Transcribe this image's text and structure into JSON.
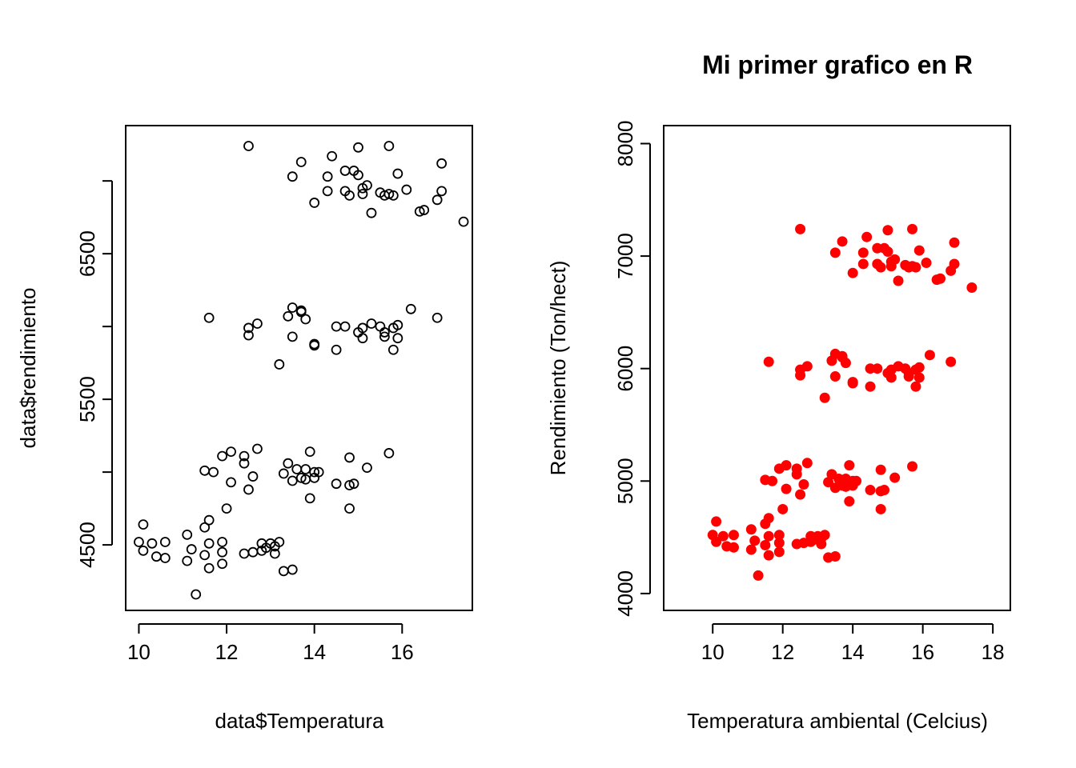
{
  "chart_data": [
    {
      "type": "scatter",
      "title": "",
      "xlabel": "data$Temperatura",
      "ylabel": "data$rendimiento",
      "xlim": [
        9.7,
        17.6
      ],
      "ylim": [
        4050,
        7380
      ],
      "xticks": [
        "10",
        "12",
        "14",
        "16"
      ],
      "yticks": [
        "4500",
        "5500",
        "6500"
      ],
      "marker": "open-circle",
      "color": "#000000",
      "x": [
        12.5,
        15.7,
        15.0,
        14.4,
        13.7,
        16.9,
        14.7,
        14.9,
        15.0,
        15.9,
        13.5,
        14.3,
        14.3,
        14.7,
        15.1,
        14.8,
        15.2,
        15.5,
        15.7,
        16.1,
        16.4,
        16.9,
        14.0,
        15.1,
        15.6,
        15.8,
        15.3,
        16.8,
        16.5,
        17.4,
        13.5,
        13.7,
        13.7,
        13.4,
        13.8,
        16.2,
        11.6,
        12.5,
        12.5,
        12.7,
        14.5,
        14.7,
        15.3,
        15.1,
        15.5,
        15.6,
        15.9,
        15.8,
        16.8,
        15.0,
        15.1,
        15.6,
        15.9,
        13.5,
        14.0,
        14.0,
        14.5,
        15.8,
        13.2,
        12.7,
        12.1,
        11.9,
        12.4,
        12.4,
        11.5,
        11.7,
        12.1,
        12.6,
        12.5,
        13.4,
        13.6,
        13.8,
        14.0,
        14.1,
        13.9,
        14.8,
        15.2,
        15.7,
        13.3,
        13.5,
        13.7,
        13.8,
        14.0,
        14.5,
        14.9,
        14.8,
        13.9,
        14.8,
        12.0,
        10.1,
        11.6,
        11.5,
        10.0,
        10.3,
        10.6,
        11.1,
        11.6,
        11.9,
        10.1,
        10.4,
        10.6,
        11.2,
        11.5,
        11.9,
        12.4,
        12.6,
        12.8,
        12.8,
        12.9,
        13.0,
        13.1,
        13.2,
        11.1,
        11.6,
        11.9,
        13.1,
        13.3,
        13.5,
        11.3
      ],
      "y": [
        7240,
        7240,
        7230,
        7170,
        7130,
        7120,
        7070,
        7070,
        7040,
        7050,
        7030,
        7030,
        6930,
        6930,
        6950,
        6900,
        6970,
        6920,
        6910,
        6940,
        6790,
        6930,
        6850,
        6910,
        6900,
        6900,
        6780,
        6870,
        6800,
        6720,
        6130,
        6100,
        6110,
        6070,
        6050,
        6120,
        6060,
        5990,
        5940,
        6020,
        6000,
        6000,
        6020,
        5990,
        6000,
        5960,
        6010,
        5990,
        6060,
        5960,
        5920,
        5930,
        5920,
        5930,
        5880,
        5870,
        5840,
        5840,
        5740,
        5160,
        5140,
        5110,
        5110,
        5060,
        5010,
        5000,
        4930,
        4970,
        4880,
        5060,
        5020,
        5020,
        5000,
        5000,
        5140,
        5100,
        5030,
        5130,
        4990,
        4940,
        4960,
        4950,
        4960,
        4920,
        4920,
        4910,
        4820,
        4750,
        4750,
        4640,
        4670,
        4620,
        4520,
        4510,
        4520,
        4570,
        4510,
        4520,
        4460,
        4420,
        4410,
        4470,
        4430,
        4450,
        4440,
        4450,
        4510,
        4460,
        4480,
        4510,
        4490,
        4520,
        4390,
        4340,
        4370,
        4440,
        4320,
        4330,
        4160
      ]
    },
    {
      "type": "scatter",
      "title": "Mi primer grafico en R",
      "xlabel": "Temperatura ambiental (Celcius)",
      "ylabel": "Rendimiento (Ton/hect)",
      "xlim": [
        8.6,
        18.5
      ],
      "ylim": [
        3850,
        8160
      ],
      "xticks": [
        "10",
        "12",
        "14",
        "16",
        "18"
      ],
      "yticks": [
        "4000",
        "5000",
        "6000",
        "7000",
        "8000"
      ],
      "marker": "filled-circle",
      "color": "#ff0000"
    }
  ]
}
